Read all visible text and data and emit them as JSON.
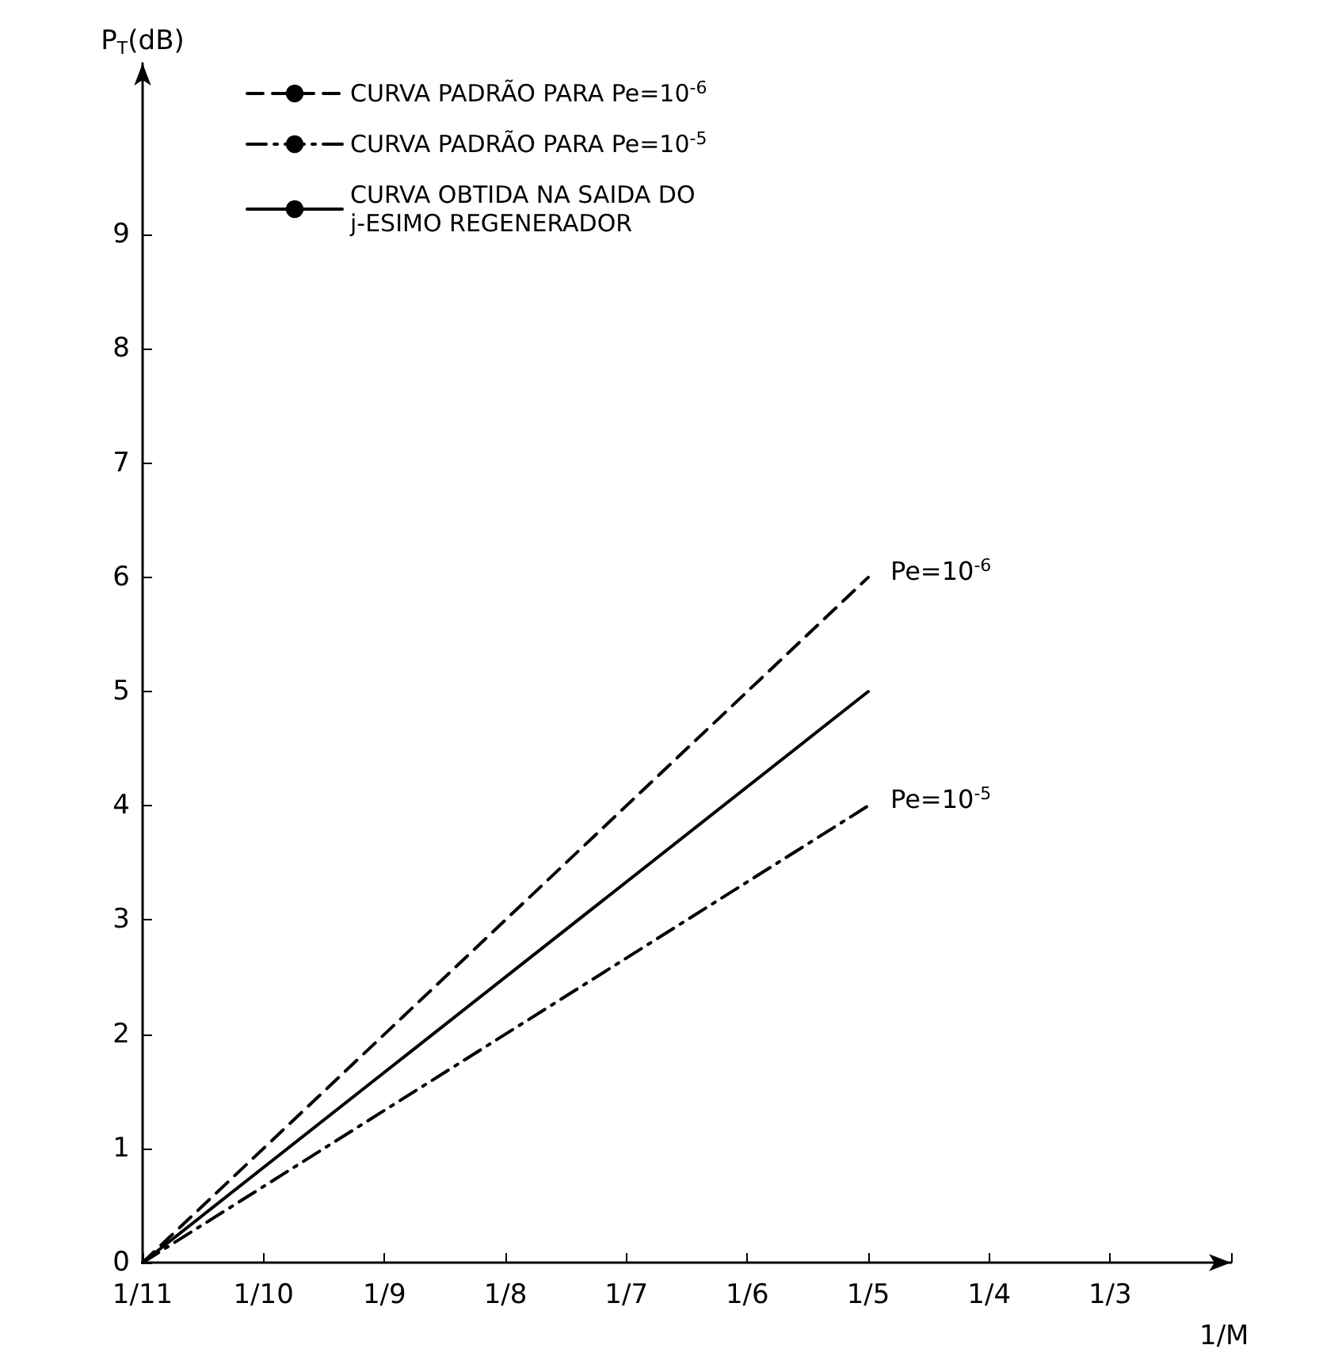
{
  "chart_data": {
    "type": "line",
    "xlabel": "1/M",
    "ylabel": "P$_{T}$(dB)",
    "categories": [
      "1/11",
      "1/10",
      "1/9",
      "1/8",
      "1/7",
      "1/6",
      "1/5",
      "1/4",
      "1/3"
    ],
    "series": [
      {
        "name": "CURVA PADRÃO PARA Pe=10$^{-6}$",
        "color": "#000000",
        "line_style": "dashed",
        "values": [
          0,
          null,
          null,
          null,
          null,
          null,
          6,
          null,
          null
        ]
      },
      {
        "name": "CURVA PADRÃO PARA Pe=10$^{-5}$",
        "color": "#000000",
        "line_style": "dashdot",
        "values": [
          0,
          null,
          null,
          null,
          null,
          null,
          4,
          null,
          null
        ]
      },
      {
        "name": "CURVA OBTIDA NA SAIDA DO\nj-ESIMO REGENERADOR",
        "color": "#000000",
        "line_style": "solid",
        "values": [
          0,
          null,
          null,
          null,
          null,
          null,
          5,
          null,
          null
        ]
      }
    ],
    "ylim": [
      0,
      10.5
    ],
    "yticks": [
      0,
      1,
      2,
      3,
      4,
      5,
      6,
      7,
      8,
      9
    ],
    "grid": false,
    "legend": "top left",
    "marker": "none",
    "annotations": [
      {
        "text": "Pe=10$^{-6}$",
        "x": "1/5",
        "y": 6
      },
      {
        "text": "Pe=10$^{-5}$",
        "x": "1/5",
        "y": 4
      }
    ]
  }
}
